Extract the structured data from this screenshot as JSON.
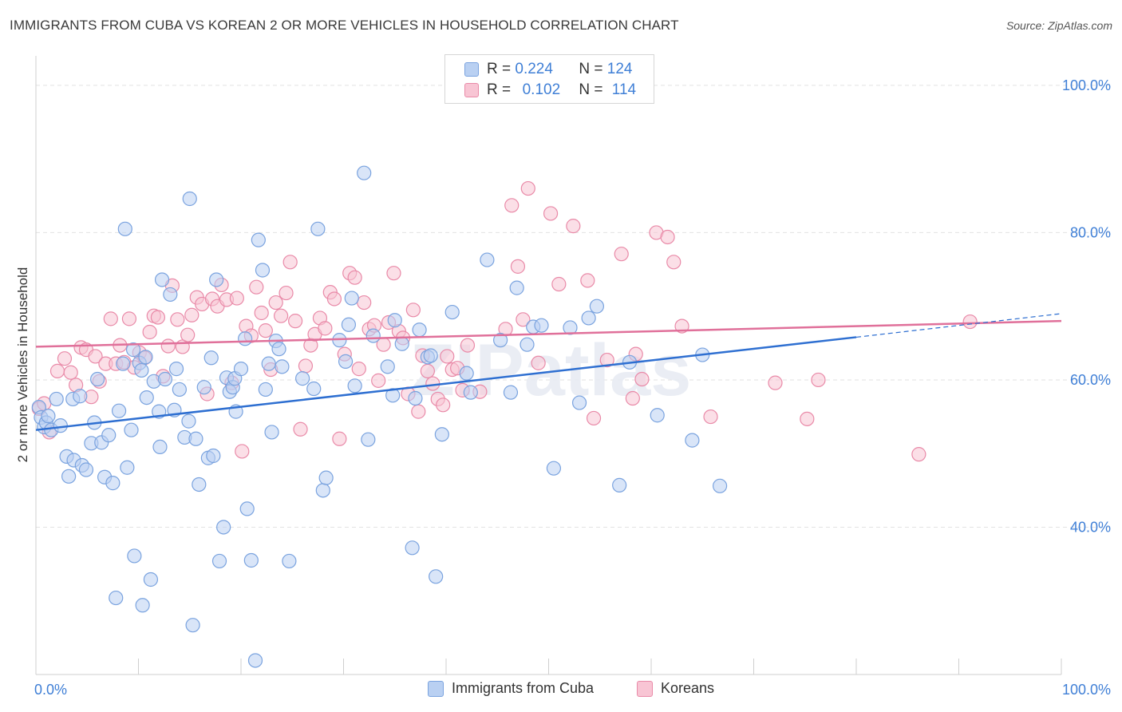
{
  "title": "IMMIGRANTS FROM CUBA VS KOREAN 2 OR MORE VEHICLES IN HOUSEHOLD CORRELATION CHART",
  "source": "Source: ZipAtlas.com",
  "watermark": "ZIPatlas",
  "legend_top": [
    {
      "r_label": "R =",
      "r_value": "0.224",
      "n_label": "N =",
      "n_value": "124"
    },
    {
      "r_label": "R =",
      "r_value": "0.102",
      "n_label": "N =",
      "n_value": "114"
    }
  ],
  "legend_bottom": [
    "Immigrants from Cuba",
    "Koreans"
  ],
  "colors": {
    "cuba_fill": "#b9d0f2",
    "cuba_stroke": "#7aa3df",
    "cuba_line": "#2e6fd1",
    "korean_fill": "#f8c5d4",
    "korean_stroke": "#e98aa8",
    "korean_line": "#e0709a",
    "axis_value": "#3f7fd6",
    "grid": "#e2e2e2"
  },
  "chart_data": {
    "type": "scatter",
    "title": "IMMIGRANTS FROM CUBA VS KOREAN 2 OR MORE VEHICLES IN HOUSEHOLD CORRELATION CHART",
    "xlabel": "",
    "ylabel": "2 or more Vehicles in Household",
    "xlim": [
      0,
      100
    ],
    "ylim": [
      20,
      104
    ],
    "x_tick_labels": [
      "0.0%",
      "100.0%"
    ],
    "y_ticks": [
      40,
      60,
      80,
      100
    ],
    "y_tick_labels": [
      "40.0%",
      "60.0%",
      "80.0%",
      "100.0%"
    ],
    "grid": true,
    "legend_placement": "top-center",
    "series": [
      {
        "name": "Immigrants from Cuba",
        "r": 0.224,
        "n": 124,
        "trend": {
          "x": [
            0,
            80
          ],
          "y": [
            53.2,
            65.8
          ],
          "dashed_x": [
            80,
            100
          ],
          "dashed_y": [
            65.8,
            69.0
          ]
        },
        "points": [
          [
            0.3,
            56.3
          ],
          [
            0.5,
            54.9
          ],
          [
            0.8,
            53.6
          ],
          [
            1.0,
            54.2
          ],
          [
            1.2,
            55.1
          ],
          [
            1.5,
            53.2
          ],
          [
            2.0,
            57.4
          ],
          [
            2.4,
            53.8
          ],
          [
            3.0,
            49.6
          ],
          [
            3.2,
            46.9
          ],
          [
            3.7,
            49.1
          ],
          [
            3.6,
            57.4
          ],
          [
            4.3,
            57.8
          ],
          [
            4.5,
            48.4
          ],
          [
            4.9,
            47.8
          ],
          [
            5.4,
            51.4
          ],
          [
            5.7,
            54.2
          ],
          [
            6.0,
            60.1
          ],
          [
            6.4,
            51.5
          ],
          [
            6.7,
            46.8
          ],
          [
            7.1,
            52.5
          ],
          [
            7.5,
            46.0
          ],
          [
            7.8,
            30.4
          ],
          [
            8.1,
            55.8
          ],
          [
            8.5,
            62.2
          ],
          [
            8.7,
            80.5
          ],
          [
            8.9,
            48.1
          ],
          [
            9.3,
            53.2
          ],
          [
            9.5,
            64.1
          ],
          [
            9.6,
            36.1
          ],
          [
            10.1,
            62.3
          ],
          [
            10.3,
            61.3
          ],
          [
            10.4,
            29.4
          ],
          [
            10.7,
            63.1
          ],
          [
            10.8,
            57.6
          ],
          [
            11.2,
            32.9
          ],
          [
            11.5,
            59.8
          ],
          [
            12.0,
            55.7
          ],
          [
            12.1,
            50.9
          ],
          [
            12.3,
            73.6
          ],
          [
            12.6,
            60.1
          ],
          [
            13.1,
            71.6
          ],
          [
            13.5,
            55.9
          ],
          [
            13.7,
            61.5
          ],
          [
            14.0,
            58.7
          ],
          [
            14.5,
            52.2
          ],
          [
            14.9,
            54.4
          ],
          [
            15.0,
            84.6
          ],
          [
            15.3,
            26.7
          ],
          [
            15.6,
            52.0
          ],
          [
            15.9,
            45.8
          ],
          [
            16.4,
            59.0
          ],
          [
            16.8,
            49.4
          ],
          [
            17.1,
            63.0
          ],
          [
            17.3,
            49.7
          ],
          [
            17.6,
            73.6
          ],
          [
            17.9,
            35.4
          ],
          [
            18.3,
            40.0
          ],
          [
            18.6,
            60.3
          ],
          [
            18.9,
            58.4
          ],
          [
            19.2,
            59.0
          ],
          [
            19.4,
            60.2
          ],
          [
            19.5,
            55.7
          ],
          [
            20.0,
            61.5
          ],
          [
            20.4,
            65.6
          ],
          [
            20.6,
            42.5
          ],
          [
            21.0,
            35.5
          ],
          [
            21.4,
            21.9
          ],
          [
            21.7,
            79.0
          ],
          [
            22.1,
            74.9
          ],
          [
            22.4,
            58.7
          ],
          [
            22.7,
            62.2
          ],
          [
            23.0,
            52.9
          ],
          [
            23.4,
            65.3
          ],
          [
            23.7,
            64.2
          ],
          [
            24.0,
            61.8
          ],
          [
            24.7,
            35.4
          ],
          [
            26.0,
            60.2
          ],
          [
            27.1,
            58.8
          ],
          [
            27.5,
            80.5
          ],
          [
            28.0,
            45.0
          ],
          [
            28.3,
            46.7
          ],
          [
            29.6,
            65.4
          ],
          [
            30.2,
            62.5
          ],
          [
            30.5,
            67.5
          ],
          [
            30.8,
            71.1
          ],
          [
            31.1,
            59.2
          ],
          [
            32.0,
            88.1
          ],
          [
            32.4,
            51.9
          ],
          [
            32.9,
            66.0
          ],
          [
            34.3,
            61.8
          ],
          [
            34.8,
            57.9
          ],
          [
            35.0,
            68.1
          ],
          [
            35.7,
            64.9
          ],
          [
            36.7,
            37.2
          ],
          [
            37.0,
            57.5
          ],
          [
            37.4,
            66.8
          ],
          [
            38.2,
            63.1
          ],
          [
            38.5,
            63.3
          ],
          [
            39.0,
            33.3
          ],
          [
            39.6,
            52.6
          ],
          [
            40.6,
            69.2
          ],
          [
            42.0,
            60.9
          ],
          [
            42.4,
            58.3
          ],
          [
            44.0,
            76.3
          ],
          [
            45.3,
            65.4
          ],
          [
            46.3,
            58.3
          ],
          [
            46.9,
            72.5
          ],
          [
            47.9,
            64.8
          ],
          [
            48.5,
            67.2
          ],
          [
            49.3,
            67.4
          ],
          [
            50.5,
            48.0
          ],
          [
            52.1,
            67.1
          ],
          [
            53.0,
            56.9
          ],
          [
            53.9,
            68.4
          ],
          [
            54.7,
            70.0
          ],
          [
            56.9,
            45.7
          ],
          [
            57.9,
            62.4
          ],
          [
            60.6,
            55.2
          ],
          [
            64.0,
            51.8
          ],
          [
            65.0,
            63.4
          ],
          [
            66.7,
            45.6
          ]
        ]
      },
      {
        "name": "Koreans",
        "r": 0.102,
        "n": 114,
        "trend": {
          "x": [
            0,
            100
          ],
          "y": [
            64.5,
            68.0
          ]
        },
        "points": [
          [
            0.3,
            56.1
          ],
          [
            0.8,
            56.8
          ],
          [
            1.3,
            52.9
          ],
          [
            2.1,
            61.2
          ],
          [
            2.8,
            62.9
          ],
          [
            3.4,
            61.0
          ],
          [
            3.9,
            59.3
          ],
          [
            4.4,
            64.4
          ],
          [
            4.9,
            64.1
          ],
          [
            5.4,
            57.7
          ],
          [
            5.8,
            63.2
          ],
          [
            6.2,
            59.8
          ],
          [
            6.8,
            62.2
          ],
          [
            7.3,
            68.3
          ],
          [
            7.8,
            62.2
          ],
          [
            8.2,
            64.7
          ],
          [
            8.6,
            62.4
          ],
          [
            9.1,
            68.3
          ],
          [
            9.6,
            61.7
          ],
          [
            10.1,
            63.7
          ],
          [
            10.6,
            63.0
          ],
          [
            11.1,
            66.5
          ],
          [
            11.5,
            68.7
          ],
          [
            11.9,
            68.5
          ],
          [
            12.4,
            60.5
          ],
          [
            12.9,
            64.6
          ],
          [
            13.3,
            72.8
          ],
          [
            13.8,
            68.2
          ],
          [
            14.3,
            64.5
          ],
          [
            14.8,
            66.1
          ],
          [
            15.2,
            68.8
          ],
          [
            15.7,
            71.2
          ],
          [
            16.2,
            70.3
          ],
          [
            16.7,
            58.1
          ],
          [
            17.2,
            71.0
          ],
          [
            17.7,
            70.0
          ],
          [
            18.1,
            72.9
          ],
          [
            18.6,
            70.9
          ],
          [
            19.1,
            59.6
          ],
          [
            19.6,
            71.1
          ],
          [
            20.1,
            50.3
          ],
          [
            20.5,
            67.3
          ],
          [
            21.0,
            66.0
          ],
          [
            21.5,
            72.6
          ],
          [
            22.0,
            69.1
          ],
          [
            22.4,
            66.7
          ],
          [
            22.9,
            61.4
          ],
          [
            23.4,
            70.5
          ],
          [
            23.9,
            68.7
          ],
          [
            24.4,
            71.8
          ],
          [
            24.8,
            76.0
          ],
          [
            25.3,
            68.0
          ],
          [
            25.8,
            53.3
          ],
          [
            26.3,
            61.9
          ],
          [
            26.8,
            64.7
          ],
          [
            27.2,
            66.2
          ],
          [
            27.7,
            68.4
          ],
          [
            28.2,
            67.0
          ],
          [
            28.7,
            71.9
          ],
          [
            29.1,
            71.0
          ],
          [
            29.6,
            52.0
          ],
          [
            30.1,
            63.5
          ],
          [
            30.6,
            74.5
          ],
          [
            31.1,
            73.9
          ],
          [
            31.5,
            61.5
          ],
          [
            32.0,
            70.5
          ],
          [
            32.5,
            66.9
          ],
          [
            33.0,
            67.4
          ],
          [
            33.4,
            59.9
          ],
          [
            33.9,
            64.8
          ],
          [
            34.4,
            67.8
          ],
          [
            34.9,
            74.5
          ],
          [
            35.4,
            66.6
          ],
          [
            35.8,
            65.7
          ],
          [
            36.3,
            58.1
          ],
          [
            36.8,
            69.5
          ],
          [
            37.3,
            55.7
          ],
          [
            37.7,
            63.3
          ],
          [
            38.2,
            61.2
          ],
          [
            38.7,
            59.5
          ],
          [
            39.2,
            57.4
          ],
          [
            39.7,
            56.6
          ],
          [
            40.1,
            63.2
          ],
          [
            40.6,
            61.4
          ],
          [
            41.1,
            61.6
          ],
          [
            41.6,
            58.6
          ],
          [
            42.1,
            64.7
          ],
          [
            43.3,
            58.4
          ],
          [
            45.8,
            66.9
          ],
          [
            46.4,
            83.7
          ],
          [
            47.0,
            75.4
          ],
          [
            47.5,
            68.2
          ],
          [
            48.0,
            86.0
          ],
          [
            49.0,
            62.3
          ],
          [
            50.2,
            82.6
          ],
          [
            51.0,
            73.0
          ],
          [
            52.4,
            80.9
          ],
          [
            53.8,
            73.5
          ],
          [
            54.4,
            54.8
          ],
          [
            55.7,
            62.7
          ],
          [
            57.1,
            77.1
          ],
          [
            58.5,
            63.5
          ],
          [
            59.1,
            60.1
          ],
          [
            60.5,
            80.0
          ],
          [
            61.6,
            79.4
          ],
          [
            62.2,
            76.0
          ],
          [
            63.0,
            67.3
          ],
          [
            65.8,
            55.0
          ],
          [
            72.1,
            59.6
          ],
          [
            75.2,
            54.7
          ],
          [
            76.3,
            60.0
          ],
          [
            86.1,
            49.9
          ],
          [
            91.1,
            67.9
          ],
          [
            58.2,
            57.5
          ]
        ]
      }
    ]
  }
}
